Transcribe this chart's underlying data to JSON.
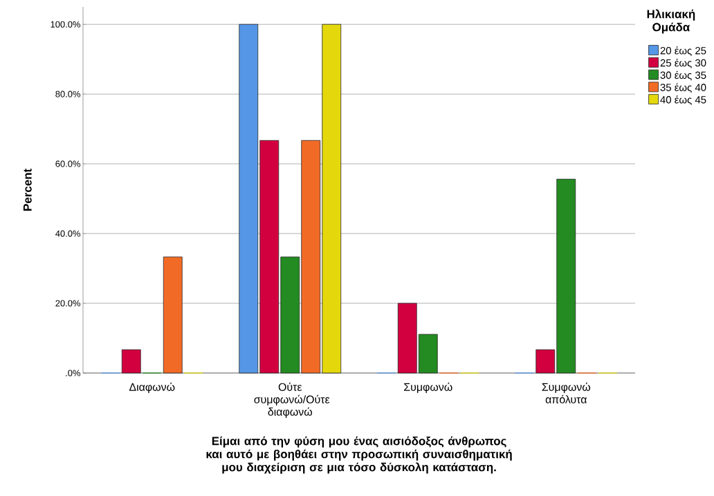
{
  "chart_data": {
    "type": "bar",
    "xlabel": "Είμαι από την φύση μου ένας αισιόδοξος άνθρωπος  και αυτό με βοηθάει στην προσωπική συναισθηματική μου διαχείριση σε μια τόσο δύσκολη κατάσταση.",
    "ylabel": "Percent",
    "legend_title": "Ηλικιακή Ομάδα",
    "categories": [
      "Διαφωνώ",
      "Ούτε συμφωνώ/Ούτε διαφωνώ",
      "Συμφωνώ",
      "Συμφωνώ απόλυτα"
    ],
    "series": [
      {
        "name": "20 έως 25",
        "color": "#5596e6",
        "values": [
          0,
          100,
          0,
          0
        ]
      },
      {
        "name": "25 έως 30",
        "color": "#d3003f",
        "values": [
          6.7,
          66.7,
          20,
          6.7
        ]
      },
      {
        "name": "30 έως 35",
        "color": "#238b21",
        "values": [
          0,
          33.3,
          11.1,
          55.6
        ]
      },
      {
        "name": "35 έως 40",
        "color": "#f26b26",
        "values": [
          33.3,
          66.7,
          0,
          0
        ]
      },
      {
        "name": "40 έως 45",
        "color": "#e4d80c",
        "values": [
          0,
          100,
          0,
          0
        ]
      }
    ],
    "ylim": [
      0,
      105
    ],
    "yticks": [
      {
        "value": 0,
        "label": ".0%"
      },
      {
        "value": 20,
        "label": "20.0%"
      },
      {
        "value": 40,
        "label": "40.0%"
      },
      {
        "value": 60,
        "label": "60.0%"
      },
      {
        "value": 80,
        "label": "80.0%"
      },
      {
        "value": 100,
        "label": "100.0%"
      }
    ],
    "grid": "y",
    "legend": "top right"
  }
}
